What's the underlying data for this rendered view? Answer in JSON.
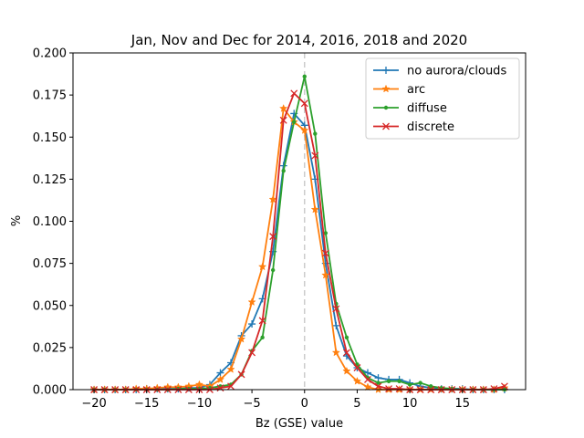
{
  "chart_data": {
    "type": "line",
    "title": "Jan, Nov and Dec for 2014, 2016, 2018 and 2020",
    "xlabel": "Bz (GSE) value",
    "ylabel": "%",
    "xlim": [
      -22,
      21
    ],
    "ylim": [
      0,
      0.2
    ],
    "xticks": [
      -20,
      -15,
      -10,
      -5,
      0,
      5,
      10,
      15
    ],
    "xtick_labels": [
      "−20",
      "−15",
      "−10",
      "−5",
      "0",
      "5",
      "10",
      "15"
    ],
    "yticks": [
      0,
      0.025,
      0.05,
      0.075,
      0.1,
      0.125,
      0.15,
      0.175,
      0.2
    ],
    "ytick_labels": [
      "0.000",
      "0.025",
      "0.050",
      "0.075",
      "0.100",
      "0.125",
      "0.150",
      "0.175",
      "0.200"
    ],
    "grid": false,
    "legend_position": "top-right",
    "reference_line": {
      "x": 0,
      "style": "dashed",
      "color": "#cccccc"
    },
    "x": [
      -20,
      -19,
      -18,
      -17,
      -16,
      -15,
      -14,
      -13,
      -12,
      -11,
      -10,
      -9,
      -8,
      -7,
      -6,
      -5,
      -4,
      -3,
      -2,
      -1,
      0,
      1,
      2,
      3,
      4,
      5,
      6,
      7,
      8,
      9,
      10,
      11,
      12,
      13,
      14,
      15,
      16,
      17,
      18,
      19
    ],
    "series": [
      {
        "name": "no aurora/clouds",
        "color": "#1f77b4",
        "marker": "plus",
        "values": [
          0,
          0,
          0,
          0,
          0,
          0.0005,
          0.0005,
          0.0005,
          0.0005,
          0.001,
          0.001,
          0.003,
          0.01,
          0.016,
          0.032,
          0.039,
          0.054,
          0.082,
          0.133,
          0.164,
          0.157,
          0.125,
          0.075,
          0.038,
          0.02,
          0.013,
          0.01,
          0.007,
          0.006,
          0.006,
          0.004,
          0.002,
          0.001,
          0.0005,
          0.0005,
          0.0005,
          0,
          0,
          0,
          0
        ]
      },
      {
        "name": "arc",
        "color": "#ff7f0e",
        "marker": "star",
        "values": [
          0,
          0,
          0,
          0,
          0.0005,
          0.0005,
          0.001,
          0.0015,
          0.0015,
          0.002,
          0.003,
          0.002,
          0.006,
          0.012,
          0.03,
          0.052,
          0.073,
          0.113,
          0.167,
          0.159,
          0.154,
          0.107,
          0.068,
          0.022,
          0.011,
          0.005,
          0.0015,
          0,
          0,
          0,
          0,
          0,
          0,
          0,
          0,
          0,
          0,
          0,
          0,
          0.001
        ]
      },
      {
        "name": "diffuse",
        "color": "#2ca02c",
        "marker": "dot",
        "values": [
          0,
          0,
          0,
          0,
          0,
          0,
          0,
          0,
          0.0005,
          0.0005,
          0.0005,
          0.001,
          0.002,
          0.003,
          0.009,
          0.023,
          0.031,
          0.071,
          0.13,
          0.159,
          0.186,
          0.152,
          0.093,
          0.051,
          0.031,
          0.015,
          0.007,
          0.004,
          0.005,
          0.005,
          0.003,
          0.004,
          0.002,
          0.001,
          0.0005,
          0,
          0,
          0,
          0,
          0
        ]
      },
      {
        "name": "discrete",
        "color": "#d62728",
        "marker": "x",
        "values": [
          0,
          0,
          0,
          0,
          0,
          0,
          0,
          0,
          0,
          0,
          0,
          0,
          0.001,
          0.002,
          0.009,
          0.022,
          0.041,
          0.091,
          0.16,
          0.176,
          0.17,
          0.139,
          0.081,
          0.048,
          0.022,
          0.013,
          0.006,
          0.002,
          0.0005,
          0.0005,
          0,
          0,
          0,
          0,
          0,
          0,
          0,
          0,
          0.0005,
          0.002
        ]
      }
    ]
  }
}
